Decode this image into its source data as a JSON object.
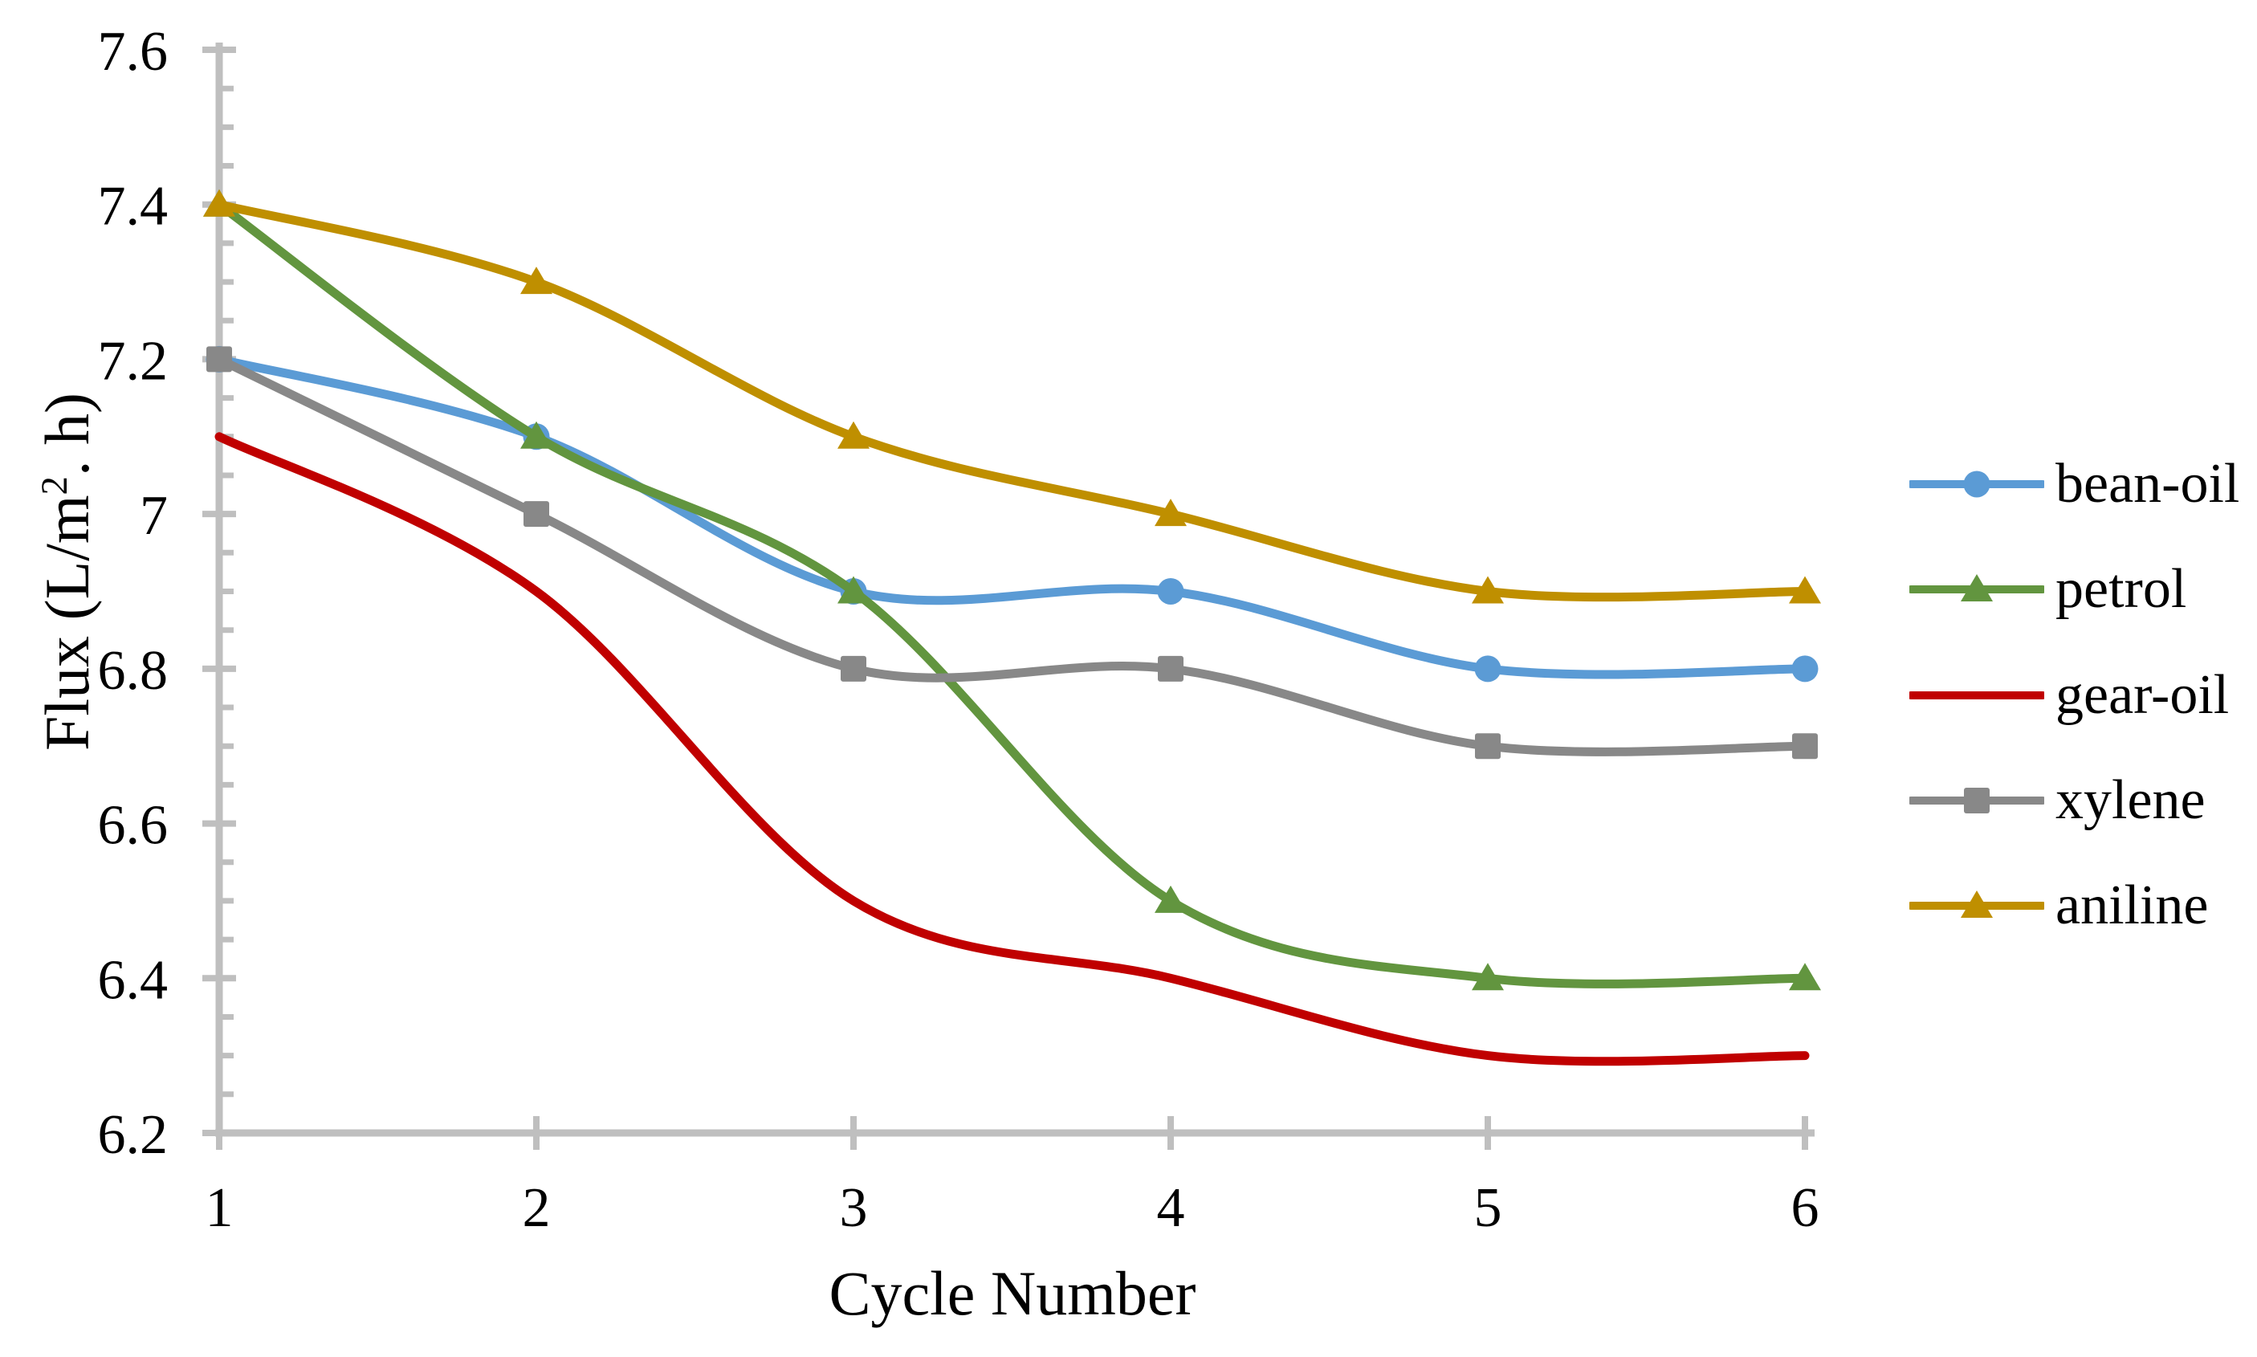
{
  "chart_data": {
    "type": "line",
    "title": "",
    "xlabel": "Cycle Number",
    "ylabel": "Flux (L/m2. h)",
    "x": [
      1,
      2,
      3,
      4,
      5,
      6
    ],
    "xtick_labels": [
      "1",
      "2",
      "3",
      "4",
      "5",
      "6"
    ],
    "ytick_values": [
      6.2,
      6.4,
      6.6,
      6.8,
      7.0,
      7.2,
      7.4,
      7.6
    ],
    "ytick_labels": [
      "6.2",
      "6.4",
      "6.6",
      "6.8",
      "7",
      "7.2",
      "7.4",
      "7.6"
    ],
    "ylim": [
      6.2,
      7.6
    ],
    "y_minor_tick_step": 0.05,
    "grid": false,
    "legend_position": "right",
    "axis_color": "#BFBFBF",
    "text_color": "#000000",
    "series": [
      {
        "name": "bean-oil",
        "color": "#5B9BD5",
        "marker": "circle",
        "values": [
          7.2,
          7.1,
          6.9,
          6.9,
          6.8,
          6.8
        ]
      },
      {
        "name": "petrol",
        "color": "#62953F",
        "marker": "triangle",
        "values": [
          7.4,
          7.1,
          6.9,
          6.5,
          6.4,
          6.4
        ]
      },
      {
        "name": "gear-oil",
        "color": "#C00000",
        "marker": "none",
        "values": [
          7.1,
          6.9,
          6.5,
          6.4,
          6.3,
          6.3
        ]
      },
      {
        "name": "xylene",
        "color": "#888888",
        "marker": "square",
        "values": [
          7.2,
          7.0,
          6.8,
          6.8,
          6.7,
          6.7
        ]
      },
      {
        "name": "aniline",
        "color": "#BF8F00",
        "marker": "triangle",
        "values": [
          7.4,
          7.3,
          7.1,
          7.0,
          6.9,
          6.9
        ]
      }
    ]
  },
  "y_axis": {
    "title_prefix": "Flux (L/m",
    "title_sup": "2",
    "title_suffix": ". h)"
  },
  "x_axis": {
    "title": "Cycle Number"
  }
}
